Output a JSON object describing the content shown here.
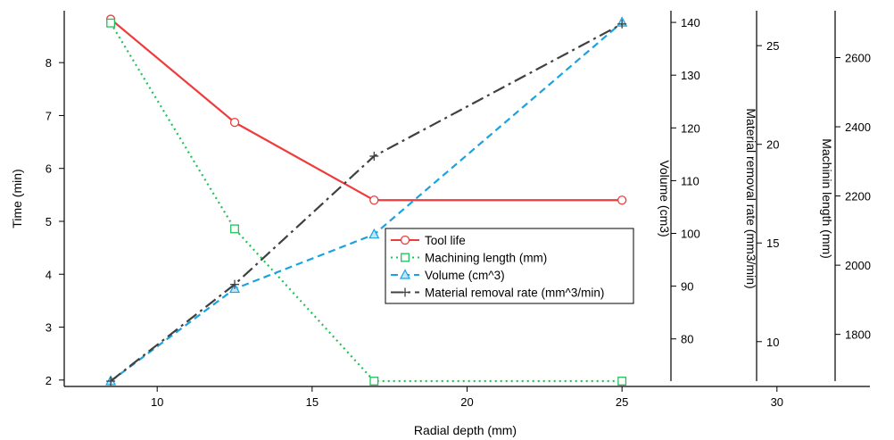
{
  "chart_data": {
    "type": "line",
    "x": [
      8.5,
      12.5,
      17,
      25
    ],
    "xlabel": "Radial depth (mm)",
    "xlim": [
      7,
      33
    ],
    "xticks": [
      10,
      15,
      20,
      25,
      30
    ],
    "series": [
      {
        "name": "Tool life",
        "axis": "time",
        "values": [
          8.82,
          6.87,
          5.4,
          5.4
        ],
        "color": "#ee3c3c",
        "dash": "",
        "marker": "circle"
      },
      {
        "name": "Machining length (mm)",
        "axis": "length",
        "values": [
          2700,
          2105,
          1665,
          1665
        ],
        "color": "#22c05a",
        "dash": "2,4",
        "marker": "square"
      },
      {
        "name": "Volume (cm^3)",
        "axis": "volume",
        "values": [
          72,
          89.5,
          99.8,
          140
        ],
        "color": "#1aa3e0",
        "dash": "8,5",
        "marker": "triangle"
      },
      {
        "name": "Material removal rate (mm^3/min)",
        "axis": "mrr",
        "values": [
          8.0,
          12.9,
          19.4,
          26.1
        ],
        "color": "#404040",
        "dash": "14,5,3,5",
        "marker": "plus"
      }
    ],
    "axes": {
      "time": {
        "label": "Time (min)",
        "range": [
          1.98,
          8.88
        ],
        "ticks": [
          2,
          3,
          4,
          5,
          6,
          7,
          8
        ]
      },
      "volume": {
        "label": "Volume (cm3)",
        "range": [
          72,
          141.2
        ],
        "ticks": [
          80,
          90,
          100,
          110,
          120,
          130,
          140
        ]
      },
      "mrr": {
        "label": "Material removal rate (mm3/min)",
        "range": [
          8.0,
          26.5
        ],
        "ticks": [
          10,
          15,
          20,
          25
        ]
      },
      "length": {
        "label": "Machinin length (mm)",
        "range": [
          1665,
          2720
        ],
        "ticks": [
          1800,
          2000,
          2200,
          2400,
          2600
        ]
      }
    },
    "legend_position": "center"
  }
}
